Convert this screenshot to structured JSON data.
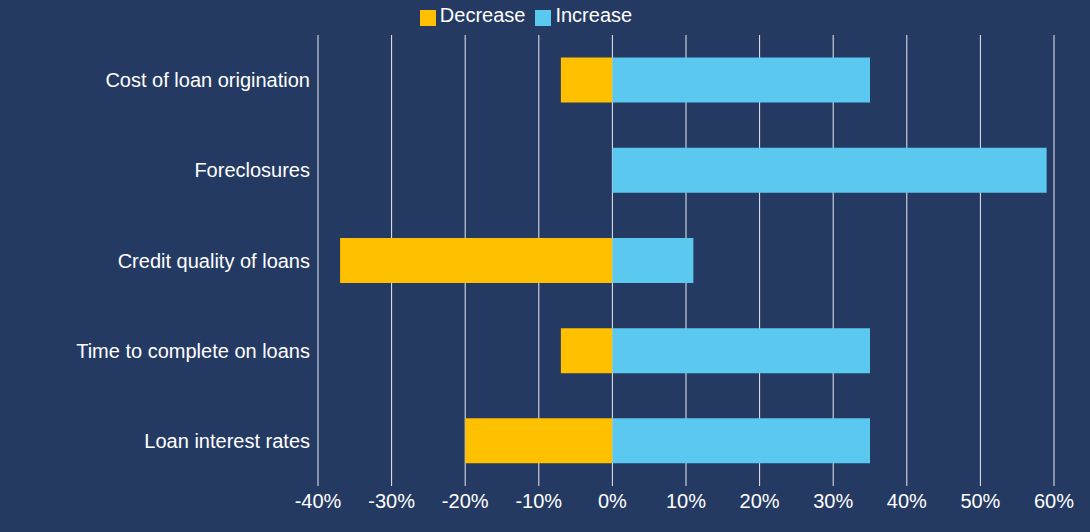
{
  "chart_data": {
    "type": "bar",
    "orientation": "horizontal",
    "stacked": true,
    "categories": [
      "Cost of loan origination",
      "Foreclosures",
      "Credit quality of loans",
      "Time to complete on loans",
      "Loan interest rates"
    ],
    "series": [
      {
        "name": "Decrease",
        "color": "#FFC000",
        "values": [
          -7,
          0,
          -37,
          -7,
          -20
        ]
      },
      {
        "name": "Increase",
        "color": "#5BC8F0",
        "values": [
          35,
          59,
          11,
          35,
          35
        ]
      }
    ],
    "xlim": [
      -40,
      60
    ],
    "xticks": [
      {
        "value": -40,
        "label": "-40%"
      },
      {
        "value": -30,
        "label": "-30%"
      },
      {
        "value": -20,
        "label": "-20%"
      },
      {
        "value": -10,
        "label": "-10%"
      },
      {
        "value": 0,
        "label": "0%"
      },
      {
        "value": 10,
        "label": "10%"
      },
      {
        "value": 20,
        "label": "20%"
      },
      {
        "value": 30,
        "label": "30%"
      },
      {
        "value": 40,
        "label": "40%"
      },
      {
        "value": 50,
        "label": "50%"
      },
      {
        "value": 60,
        "label": "60%"
      }
    ],
    "grid": true,
    "legend": "top"
  }
}
